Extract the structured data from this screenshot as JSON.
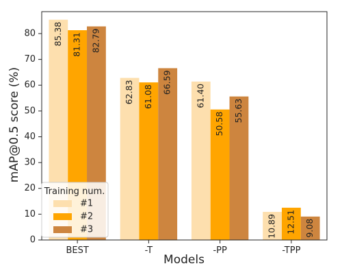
{
  "chart_data": {
    "type": "bar",
    "title": "",
    "xlabel": "Models",
    "ylabel": "mAP@0.5 score (%)",
    "categories": [
      "BEST",
      "-T",
      "-PP",
      "-TPP"
    ],
    "series": [
      {
        "name": "#1",
        "color": "#fddfae",
        "values": [
          85.38,
          62.83,
          61.4,
          10.89
        ],
        "labels": [
          "85.38",
          "62.83",
          "61.40",
          "10.89"
        ]
      },
      {
        "name": "#2",
        "color": "#ffa500",
        "values": [
          81.31,
          61.08,
          50.58,
          12.51
        ],
        "labels": [
          "81.31",
          "61.08",
          "50.58",
          "12.51"
        ]
      },
      {
        "name": "#3",
        "color": "#cd853f",
        "values": [
          82.79,
          66.59,
          55.63,
          9.08
        ],
        "labels": [
          "82.79",
          "66.59",
          "55.63",
          "9.08"
        ]
      }
    ],
    "ylim": [
      0,
      88.5
    ],
    "yticks": [
      0,
      10,
      20,
      30,
      40,
      50,
      60,
      70,
      80
    ],
    "grid": false,
    "legend": {
      "title": "Training num.",
      "placement": "lower-left"
    }
  }
}
